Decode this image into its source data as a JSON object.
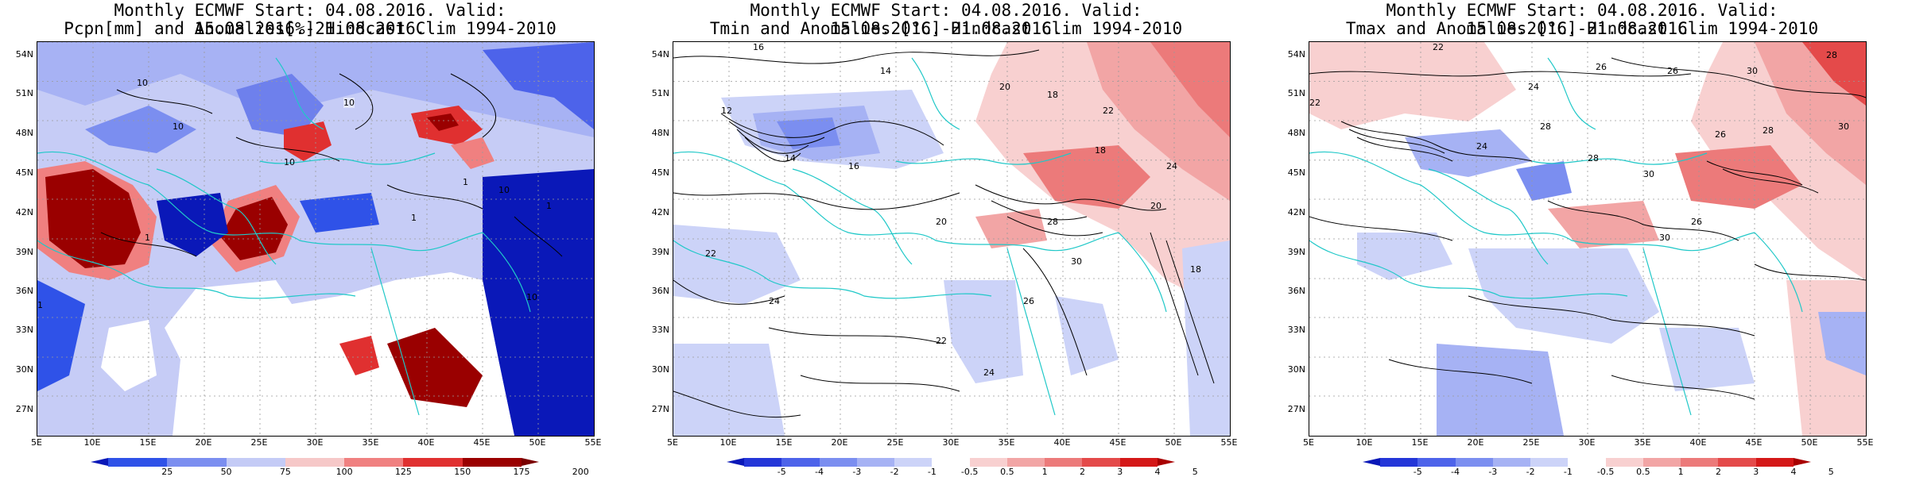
{
  "panels": [
    {
      "title_line1": "Monthly ECMWF Start: 04.08.2016. Valid: 15.08.2016.-21.08.2016.",
      "title_line2": "Pcpn[mm] and Anomalies[%] Hindcast Clim 1994-2010",
      "colorbar": {
        "ticks": [
          "25",
          "50",
          "75",
          "100",
          "125",
          "150",
          "175",
          "200"
        ],
        "colors": [
          "#0a18b8",
          "#2f52e8",
          "#7b8ef0",
          "#c4cbf6",
          "#f6c8c8",
          "#f08080",
          "#e03030",
          "#9a0000",
          "#7a0000"
        ]
      },
      "contour_labels": [
        "10",
        "10",
        "10",
        "10",
        "1",
        "1",
        "10",
        "1",
        "1",
        "10",
        "1"
      ]
    },
    {
      "title_line1": "Monthly ECMWF Start: 04.08.2016. Valid: 15.08.2016.-21.08.2016.",
      "title_line2": "Tmin and Anomalies [°C] Hindcast Clim 1994-2010",
      "colorbar": {
        "ticks": [
          "-5",
          "-4",
          "-3",
          "-2",
          "-1",
          "-0.5",
          "0.5",
          "1",
          "2",
          "3",
          "4",
          "5"
        ],
        "colors": [
          "#0a18b8",
          "#2436d8",
          "#4d63ea",
          "#7b8ef0",
          "#a6b2f4",
          "#ccd3f8",
          "#ffffff",
          "#f8d0d0",
          "#f2a5a5",
          "#ec7a7a",
          "#e44a4a",
          "#d41818",
          "#a80000"
        ]
      },
      "contour_labels": [
        "14",
        "16",
        "12",
        "20",
        "18",
        "22",
        "24",
        "18",
        "14",
        "16",
        "20",
        "22",
        "24",
        "28",
        "30",
        "26",
        "22",
        "24",
        "18",
        "20"
      ]
    },
    {
      "title_line1": "Monthly ECMWF Start: 04.08.2016. Valid: 15.08.2016.-21.08.2016.",
      "title_line2": "Tmax and Anomalies [°C] Hindcast Clim 1994-2010",
      "colorbar": {
        "ticks": [
          "-5",
          "-4",
          "-3",
          "-2",
          "-1",
          "-0.5",
          "0.5",
          "1",
          "2",
          "3",
          "4",
          "5"
        ],
        "colors": [
          "#0a18b8",
          "#2436d8",
          "#4d63ea",
          "#7b8ef0",
          "#a6b2f4",
          "#ccd3f8",
          "#ffffff",
          "#f8d0d0",
          "#f2a5a5",
          "#ec7a7a",
          "#e44a4a",
          "#d41818",
          "#a80000"
        ]
      },
      "contour_labels": [
        "22",
        "26",
        "28",
        "30",
        "24",
        "26",
        "28",
        "30",
        "26",
        "28",
        "24",
        "28",
        "30",
        "26",
        "30",
        "22"
      ]
    }
  ],
  "lat_labels": [
    "54N",
    "51N",
    "48N",
    "45N",
    "42N",
    "39N",
    "36N",
    "33N",
    "30N",
    "27N"
  ],
  "lon_labels": [
    "5E",
    "10E",
    "15E",
    "20E",
    "25E",
    "30E",
    "35E",
    "40E",
    "45E",
    "50E",
    "55E"
  ],
  "legend_colors": {
    "coast": "#20c8c8",
    "contour": "#000000",
    "grid": "#9a9a9a"
  }
}
